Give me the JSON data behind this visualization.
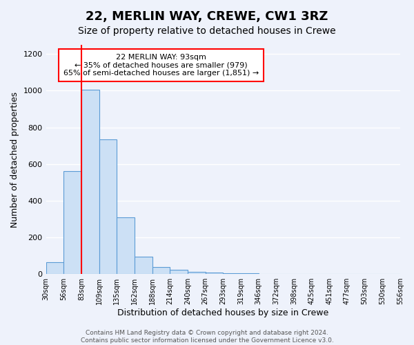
{
  "title": "22, MERLIN WAY, CREWE, CW1 3RZ",
  "subtitle": "Size of property relative to detached houses in Crewe",
  "xlabel": "Distribution of detached houses by size in Crewe",
  "ylabel": "Number of detached properties",
  "bar_values": [
    65,
    560,
    1005,
    735,
    310,
    95,
    40,
    22,
    12,
    8,
    5,
    5,
    0,
    0,
    0,
    0,
    0,
    0,
    0,
    0
  ],
  "bin_labels": [
    "30sqm",
    "56sqm",
    "83sqm",
    "109sqm",
    "135sqm",
    "162sqm",
    "188sqm",
    "214sqm",
    "240sqm",
    "267sqm",
    "293sqm",
    "319sqm",
    "346sqm",
    "372sqm",
    "398sqm",
    "425sqm",
    "451sqm",
    "477sqm",
    "503sqm",
    "530sqm",
    "556sqm"
  ],
  "bar_color": "#cce0f5",
  "bar_edge_color": "#5b9bd5",
  "red_line_index": 2,
  "annotation_text": "22 MERLIN WAY: 93sqm\n← 35% of detached houses are smaller (979)\n65% of semi-detached houses are larger (1,851) →",
  "annotation_box_color": "white",
  "annotation_box_edge_color": "red",
  "ylim": [
    0,
    1250
  ],
  "yticks": [
    0,
    200,
    400,
    600,
    800,
    1000,
    1200
  ],
  "footer_line1": "Contains HM Land Registry data © Crown copyright and database right 2024.",
  "footer_line2": "Contains public sector information licensed under the Government Licence v3.0.",
  "background_color": "#eef2fb",
  "grid_color": "#ffffff",
  "title_fontsize": 13,
  "subtitle_fontsize": 10,
  "annot_fontsize": 8,
  "xlabel_fontsize": 9,
  "ylabel_fontsize": 9,
  "footer_fontsize": 6.5,
  "tick_fontsize": 7
}
